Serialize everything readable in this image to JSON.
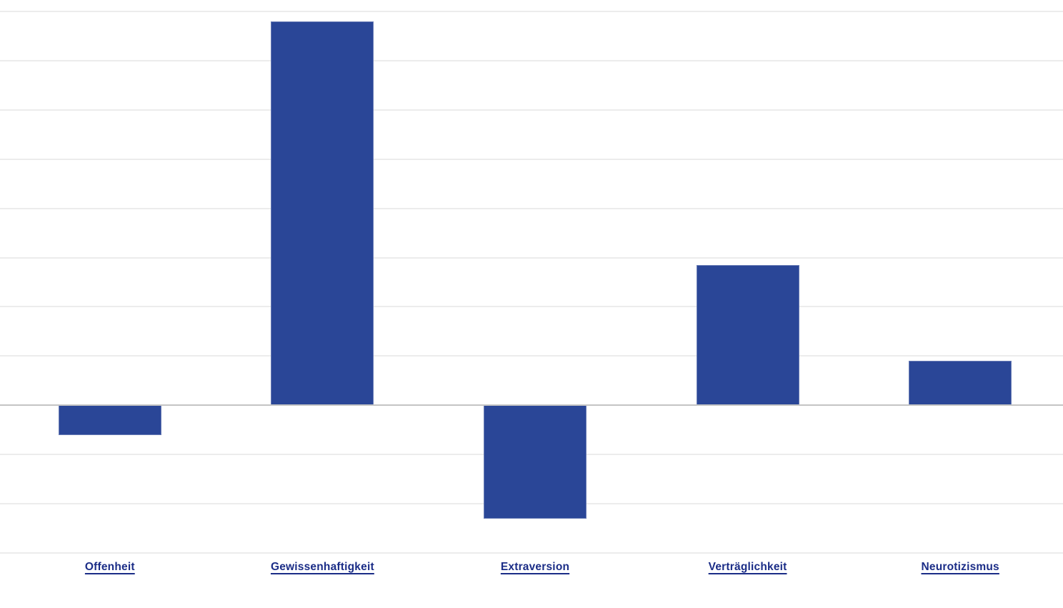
{
  "page": {
    "background": "#ffffff"
  },
  "chart_data": {
    "type": "bar",
    "title": "",
    "xlabel": "",
    "ylabel": "",
    "categories": [
      "Offenheit",
      "Gewissenhaftigkeit",
      "Extraversion",
      "Verträglichkeit",
      "Neurotizismus"
    ],
    "values": [
      -0.6,
      7.8,
      -2.3,
      2.85,
      0.9
    ],
    "ylim": [
      -3,
      8
    ],
    "gridline_step": 1,
    "grid": true,
    "y_tick_labels_visible": false,
    "legend_position": "none",
    "bar_color": "#2a4697",
    "gridline_color": "#ececec",
    "zero_line_color": "#c4c4c4",
    "x_label_color": "#1b2d87",
    "x_labels_underlined": true
  }
}
